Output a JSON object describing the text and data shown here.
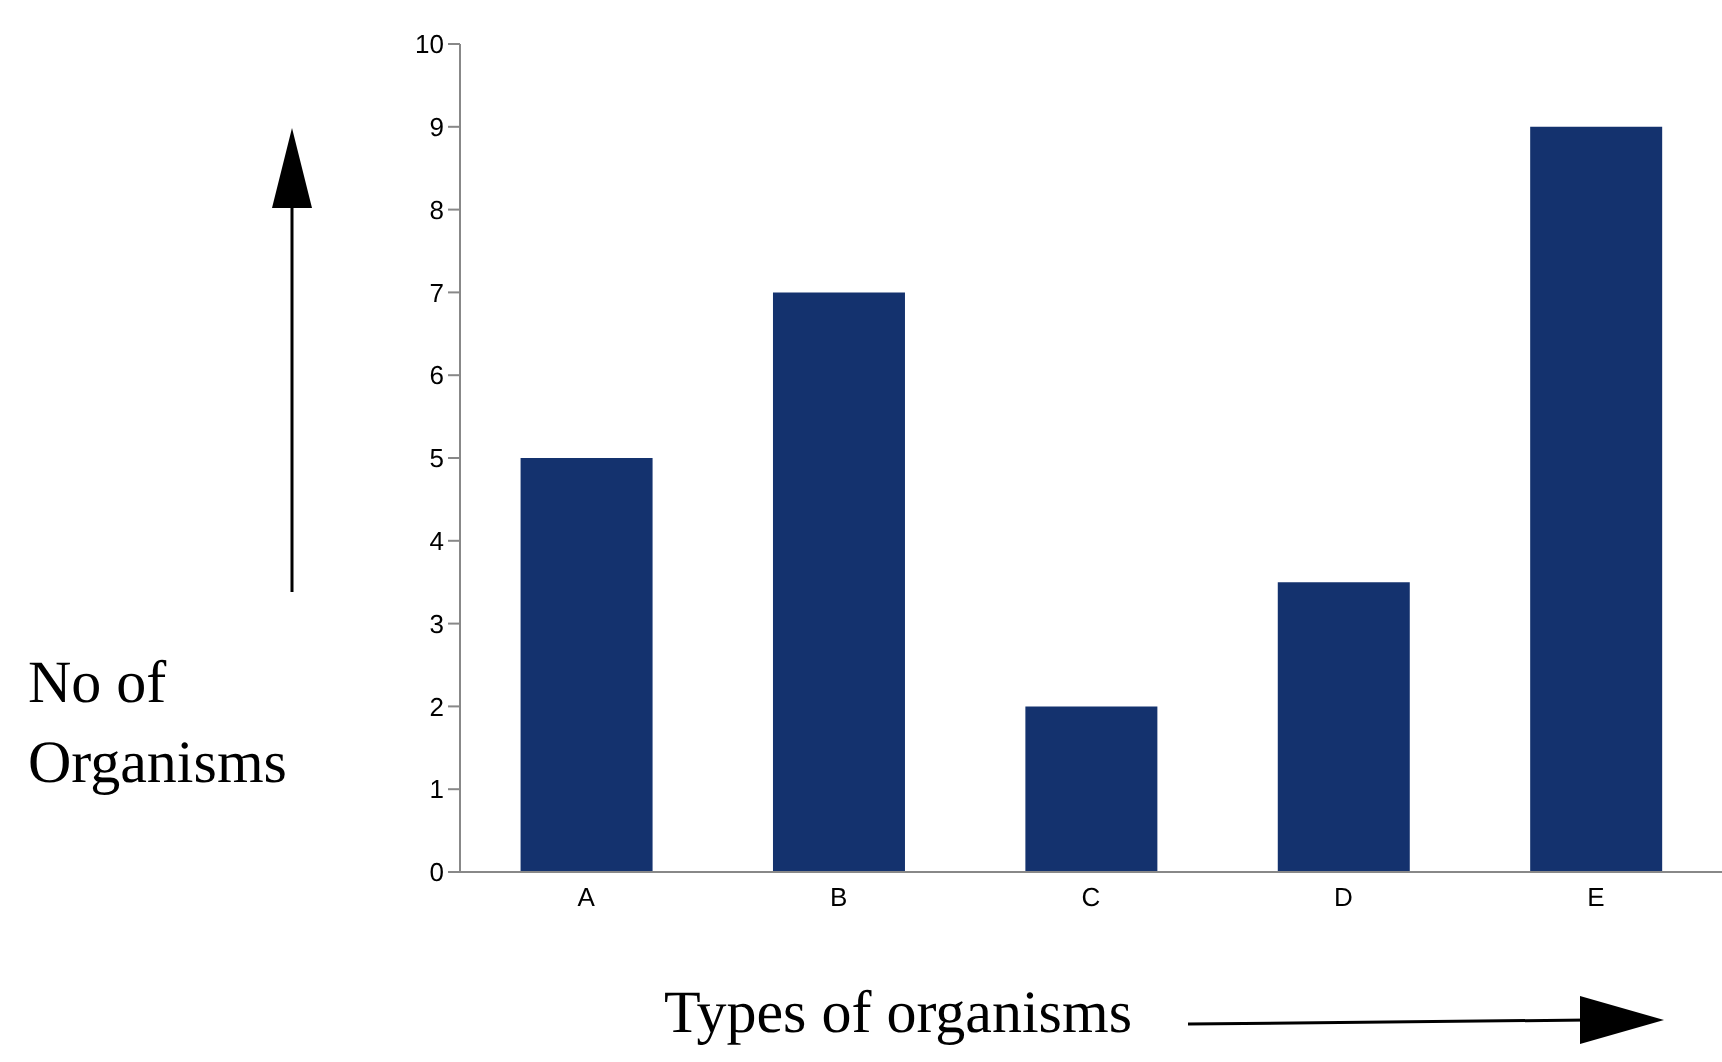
{
  "chart_data": {
    "type": "bar",
    "xlabel": "Types of organisms",
    "ylabel": "No of Organisms",
    "categories": [
      "A",
      "B",
      "C",
      "D",
      "E"
    ],
    "values": [
      5,
      7,
      2,
      3.5,
      9
    ],
    "color": "#14326e",
    "ylim": [
      0,
      10
    ],
    "yticks": [
      0,
      1,
      2,
      3,
      4,
      5,
      6,
      7,
      8,
      9,
      10
    ],
    "grid": false,
    "legend": false
  }
}
